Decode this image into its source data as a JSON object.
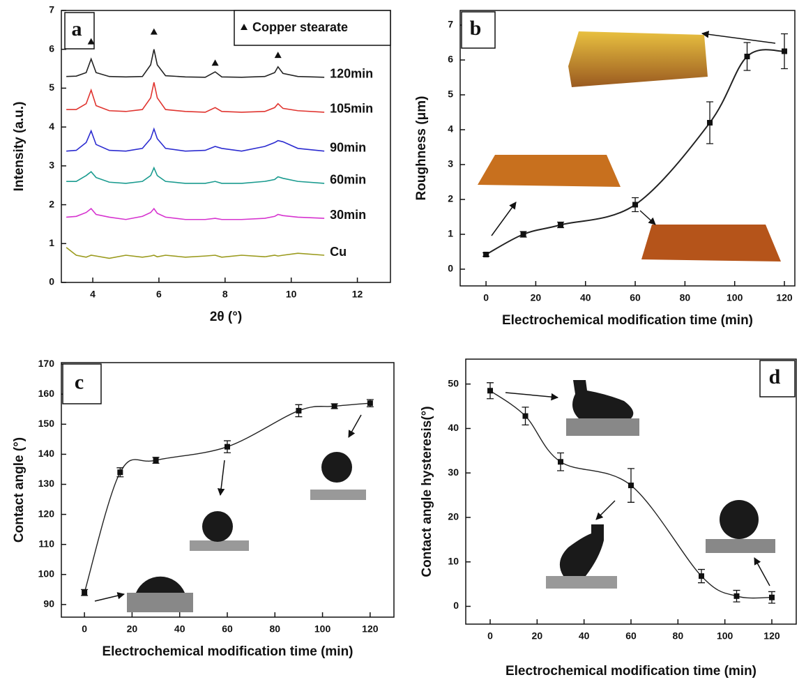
{
  "chart_data": [
    {
      "type": "line",
      "panel_label": "a",
      "xlabel": "2θ (°)",
      "ylabel": "Intensity (a.u.)",
      "xlim": [
        3.05,
        13
      ],
      "ylim": [
        0,
        7
      ],
      "xticks": [
        4,
        6,
        8,
        10,
        12
      ],
      "yticks": [
        0,
        1,
        2,
        3,
        4,
        5,
        6,
        7
      ],
      "annotation": "Copper stearate",
      "peak_markers": {
        "x": [
          3.95,
          5.85,
          7.7,
          9.6
        ],
        "y": [
          6.2,
          6.45,
          5.65,
          5.85
        ]
      },
      "x": [
        3.2,
        3.5,
        3.8,
        3.95,
        4.1,
        4.5,
        5.0,
        5.5,
        5.75,
        5.85,
        5.95,
        6.2,
        6.8,
        7.4,
        7.7,
        7.9,
        8.5,
        9.2,
        9.5,
        9.6,
        9.75,
        10.2,
        11.0
      ],
      "series": [
        {
          "name": "120min",
          "color": "#222222",
          "values": [
            5.3,
            5.31,
            5.4,
            5.75,
            5.4,
            5.3,
            5.29,
            5.3,
            5.6,
            6.0,
            5.6,
            5.32,
            5.29,
            5.28,
            5.42,
            5.29,
            5.28,
            5.3,
            5.4,
            5.55,
            5.38,
            5.3,
            5.28
          ]
        },
        {
          "name": "105min",
          "color": "#e0342f",
          "values": [
            4.45,
            4.45,
            4.6,
            4.95,
            4.55,
            4.42,
            4.4,
            4.45,
            4.75,
            5.15,
            4.75,
            4.45,
            4.4,
            4.38,
            4.5,
            4.4,
            4.38,
            4.4,
            4.5,
            4.6,
            4.48,
            4.42,
            4.38
          ]
        },
        {
          "name": "90min",
          "color": "#2b2bd0",
          "values": [
            3.38,
            3.4,
            3.6,
            3.9,
            3.55,
            3.4,
            3.38,
            3.45,
            3.7,
            3.95,
            3.7,
            3.45,
            3.38,
            3.4,
            3.5,
            3.45,
            3.38,
            3.5,
            3.6,
            3.65,
            3.62,
            3.45,
            3.38
          ]
        },
        {
          "name": "60min",
          "color": "#1a9b8f",
          "values": [
            2.6,
            2.6,
            2.75,
            2.85,
            2.7,
            2.58,
            2.55,
            2.6,
            2.75,
            2.95,
            2.75,
            2.6,
            2.55,
            2.55,
            2.6,
            2.55,
            2.55,
            2.6,
            2.65,
            2.72,
            2.68,
            2.6,
            2.55
          ]
        },
        {
          "name": "30min",
          "color": "#d633cf",
          "values": [
            1.68,
            1.7,
            1.8,
            1.9,
            1.75,
            1.68,
            1.62,
            1.7,
            1.8,
            1.9,
            1.78,
            1.68,
            1.62,
            1.62,
            1.65,
            1.62,
            1.62,
            1.65,
            1.7,
            1.75,
            1.72,
            1.68,
            1.65
          ]
        },
        {
          "name": "Cu",
          "color": "#9a9a1c",
          "values": [
            0.9,
            0.7,
            0.65,
            0.7,
            0.68,
            0.62,
            0.7,
            0.65,
            0.68,
            0.7,
            0.66,
            0.7,
            0.65,
            0.68,
            0.7,
            0.65,
            0.7,
            0.66,
            0.7,
            0.68,
            0.7,
            0.75,
            0.7
          ]
        }
      ]
    },
    {
      "type": "scatter",
      "panel_label": "b",
      "xlabel": "Electrochemical modification time (min)",
      "ylabel": "Roughness (μm)",
      "xlim": [
        -10.4,
        124.2
      ],
      "ylim": [
        -0.48,
        7.42
      ],
      "xticks": [
        0,
        20,
        40,
        60,
        80,
        100,
        120
      ],
      "yticks": [
        0,
        1,
        2,
        3,
        4,
        5,
        6,
        7
      ],
      "x": [
        0,
        15,
        30,
        60,
        90,
        105,
        120
      ],
      "values": [
        0.42,
        1.0,
        1.27,
        1.85,
        4.2,
        6.1,
        6.25
      ],
      "errors": [
        0.05,
        0.08,
        0.08,
        0.2,
        0.6,
        0.4,
        0.5
      ],
      "color": "#111111"
    },
    {
      "type": "scatter",
      "panel_label": "c",
      "xlabel": "Electrochemical modification time (min)",
      "ylabel": "Contact angle (°)",
      "xlim": [
        -9.7,
        130
      ],
      "ylim": [
        85.8,
        170.5
      ],
      "xticks": [
        0,
        20,
        40,
        60,
        80,
        100,
        120
      ],
      "yticks": [
        90,
        100,
        110,
        120,
        130,
        140,
        150,
        160,
        170
      ],
      "x": [
        0,
        15,
        30,
        60,
        90,
        105,
        120
      ],
      "values": [
        94,
        134,
        138,
        142.5,
        154.5,
        156,
        157
      ],
      "errors": [
        1,
        1.5,
        1,
        2,
        2,
        0.8,
        1.2
      ],
      "color": "#111111"
    },
    {
      "type": "scatter",
      "panel_label": "d",
      "xlabel": "Electrochemical modification time (min)",
      "ylabel": "Contact angle hysteresis(°)",
      "xlim": [
        -10.4,
        130.4
      ],
      "ylim": [
        -4,
        55.6
      ],
      "xticks": [
        0,
        20,
        40,
        60,
        80,
        100,
        120
      ],
      "yticks": [
        0,
        10,
        20,
        30,
        40,
        50
      ],
      "x": [
        0,
        15,
        30,
        60,
        90,
        105,
        120
      ],
      "values": [
        48.5,
        42.8,
        32.5,
        27.2,
        6.8,
        2.3,
        2
      ],
      "errors": [
        1.8,
        2,
        2,
        3.8,
        1.5,
        1.3,
        1.3
      ],
      "color": "#111111"
    }
  ]
}
